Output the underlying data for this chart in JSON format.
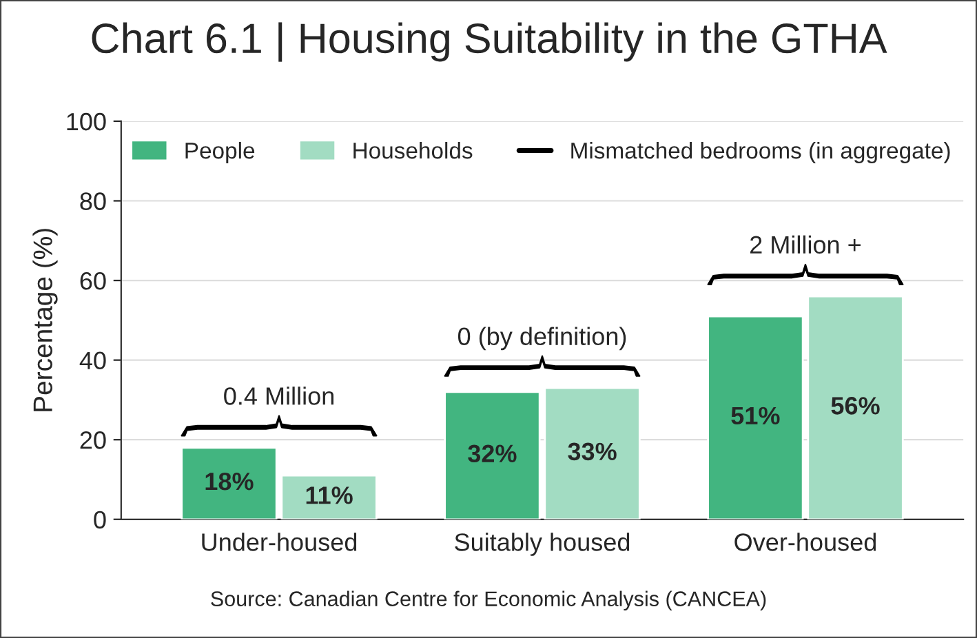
{
  "chart_data": {
    "type": "bar",
    "title": "Chart 6.1 | Housing Suitability in the GTHA",
    "ylabel": "Percentage (%)",
    "categories": [
      "Under-housed",
      "Suitably housed",
      "Over-housed"
    ],
    "series": [
      {
        "name": "People",
        "color": "#42b580",
        "values": [
          18,
          32,
          51
        ],
        "value_labels": [
          "18%",
          "32%",
          "51%"
        ]
      },
      {
        "name": "Households",
        "color": "#a2dcc2",
        "values": [
          11,
          33,
          56
        ],
        "value_labels": [
          "11%",
          "33%",
          "56%"
        ]
      },
      {
        "name": "Mismatched bedrooms (in aggregate)",
        "type": "line",
        "color": "#000000",
        "values": [
          null,
          null,
          null
        ]
      }
    ],
    "ylim": [
      0,
      100
    ],
    "yticks": [
      0,
      20,
      40,
      60,
      80,
      100
    ],
    "grid": "y",
    "legend": "top",
    "annotations": [
      "0.4 Million",
      "0 (by definition)",
      "2 Million +",
      "Source: Canadian Centre for Economic Analysis (CANCEA)"
    ]
  }
}
